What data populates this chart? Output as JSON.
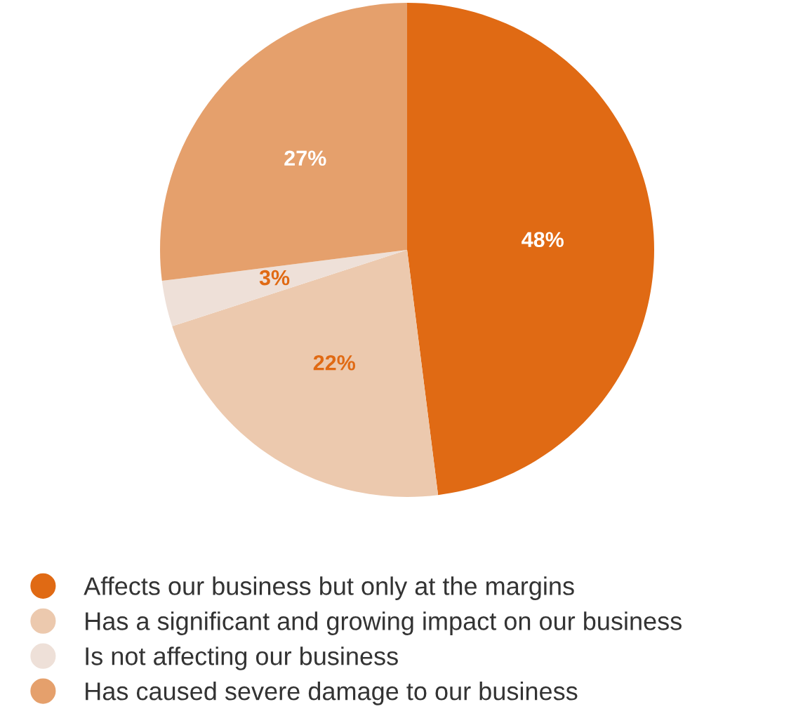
{
  "chart_data": {
    "type": "pie",
    "categories": [
      "Affects our business but only at the margins",
      "Has a significant and growing impact on our business",
      "Is not affecting our business",
      "Has caused severe damage to our business"
    ],
    "values": [
      48,
      22,
      3,
      27
    ],
    "colors": [
      "#e06a14",
      "#ecc9ae",
      "#eee0d8",
      "#e5a06c"
    ],
    "value_labels": [
      "48%",
      "22%",
      "3%",
      "27%"
    ],
    "legend": "bottom left"
  }
}
